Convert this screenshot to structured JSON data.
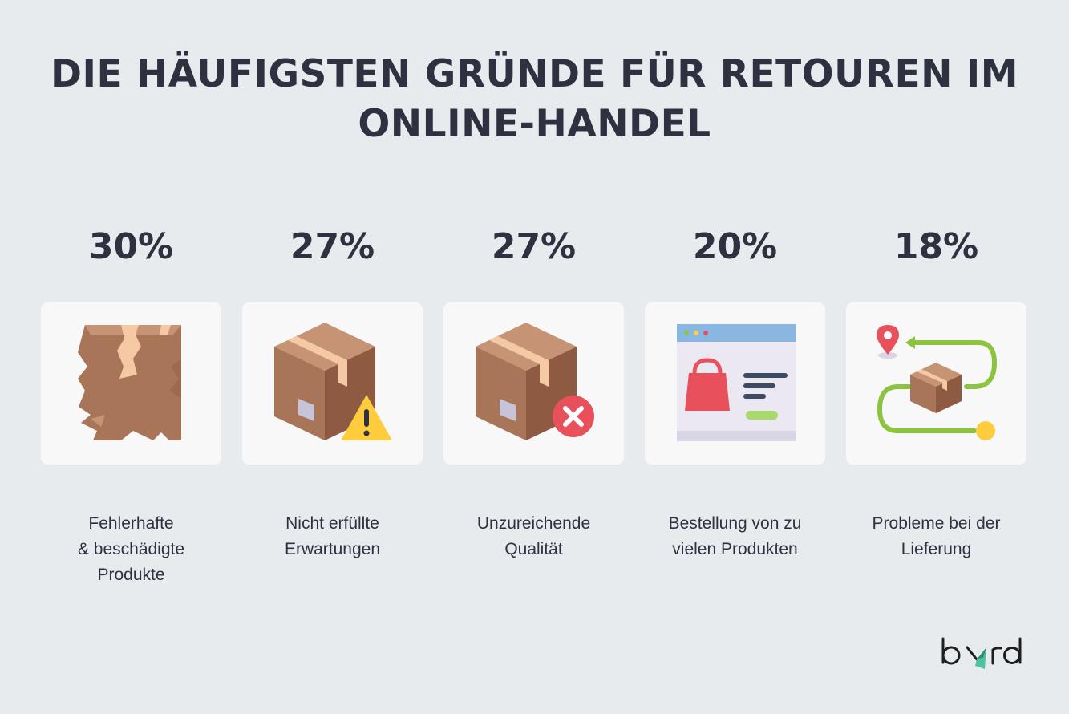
{
  "title": {
    "line1": "DIE HÄUFIGSTEN GRÜNDE FÜR RETOUREN IM",
    "line2": "ONLINE-HANDEL"
  },
  "chart_data": {
    "type": "table",
    "categories": [
      "Fehlerhafte\n&  beschädigte\nProdukte",
      "Nicht erfüllte\nErwartungen",
      "Unzureichende\nQualität",
      "Bestellung von zu\nvielen Produkten",
      "Probleme bei der\nLieferung"
    ],
    "values": [
      30,
      27,
      27,
      20,
      18
    ],
    "value_labels": [
      "30%",
      "27%",
      "27%",
      "20%",
      "18%"
    ],
    "icons": [
      "broken-box-icon",
      "box-warning-icon",
      "box-error-icon",
      "online-shop-window-icon",
      "delivery-route-icon"
    ]
  },
  "brand": {
    "logo_text": "byrd",
    "accent_color": "#4fc3a1"
  },
  "colors": {
    "background": "#e8ebee",
    "card": "#f8f8f9",
    "text": "#2e3240",
    "box_brown": "#b07a5a",
    "box_tape": "#f4c9a3",
    "warning": "#ffcc3d",
    "error": "#e8505b",
    "route_green": "#8cc43f"
  }
}
